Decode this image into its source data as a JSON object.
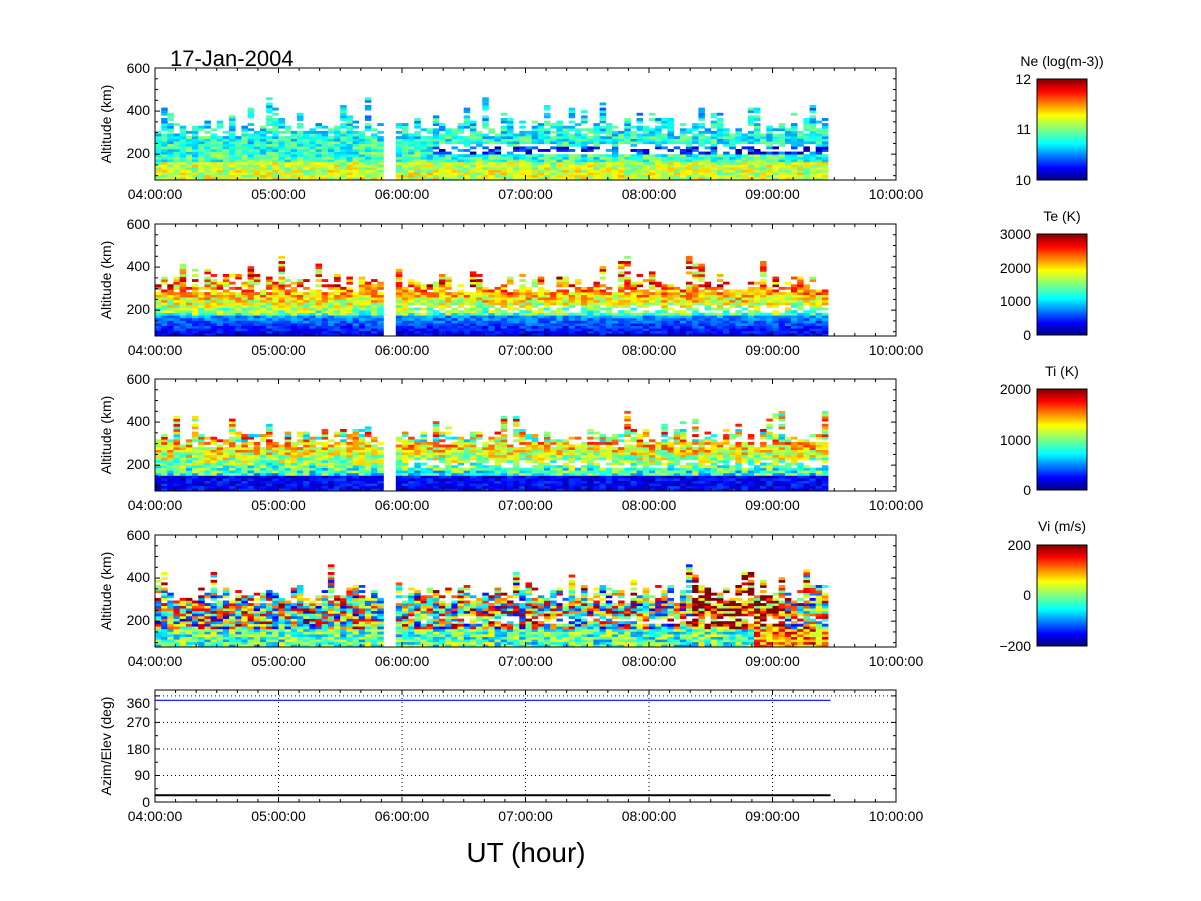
{
  "date_title": "17-Jan-2004",
  "x_axis": {
    "label": "UT (hour)",
    "tick_labels": [
      "04:00:00",
      "05:00:00",
      "06:00:00",
      "07:00:00",
      "08:00:00",
      "09:00:00",
      "10:00:00"
    ]
  },
  "chart_data": [
    {
      "type": "heatmap",
      "name": "Ne",
      "ylabel": "Altitude (km)",
      "xlim": [
        "04:00:00",
        "10:00:00"
      ],
      "ylim": [
        80,
        600
      ],
      "y_ticks": [
        "200",
        "400",
        "600"
      ],
      "data_range_hours": [
        4.0,
        9.45
      ],
      "gap_hours": [
        5.83,
        5.92
      ],
      "colorbar": {
        "title": "Ne (log(m-3))",
        "range": [
          10,
          12
        ],
        "ticks": [
          "10",
          "11",
          "12"
        ]
      }
    },
    {
      "type": "heatmap",
      "name": "Te",
      "ylabel": "Altitude (km)",
      "xlim": [
        "04:00:00",
        "10:00:00"
      ],
      "ylim": [
        80,
        600
      ],
      "y_ticks": [
        "200",
        "400",
        "600"
      ],
      "data_range_hours": [
        4.0,
        9.45
      ],
      "gap_hours": [
        5.83,
        5.92
      ],
      "colorbar": {
        "title": "Te (K)",
        "range": [
          0,
          3000
        ],
        "ticks": [
          "0",
          "1000",
          "2000",
          "3000"
        ]
      }
    },
    {
      "type": "heatmap",
      "name": "Ti",
      "ylabel": "Altitude (km)",
      "xlim": [
        "04:00:00",
        "10:00:00"
      ],
      "ylim": [
        80,
        600
      ],
      "y_ticks": [
        "200",
        "400",
        "600"
      ],
      "data_range_hours": [
        4.0,
        9.45
      ],
      "gap_hours": [
        5.83,
        5.92
      ],
      "colorbar": {
        "title": "Ti (K)",
        "range": [
          0,
          2000
        ],
        "ticks": [
          "0",
          "1000",
          "2000"
        ]
      }
    },
    {
      "type": "heatmap",
      "name": "Vi",
      "ylabel": "Altitude (km)",
      "xlim": [
        "04:00:00",
        "10:00:00"
      ],
      "ylim": [
        80,
        600
      ],
      "y_ticks": [
        "200",
        "400",
        "600"
      ],
      "data_range_hours": [
        4.0,
        9.45
      ],
      "gap_hours": [
        5.83,
        5.92
      ],
      "colorbar": {
        "title": "Vi (m/s)",
        "range": [
          -200,
          200
        ],
        "ticks": [
          "−200",
          "0",
          "200"
        ]
      }
    },
    {
      "type": "line",
      "name": "Azim/Elev",
      "ylabel": "Azim/Elev (deg)",
      "xlim": [
        "04:00:00",
        "10:00:00"
      ],
      "ylim": [
        0,
        380
      ],
      "y_ticks": [
        "0",
        "90",
        "180",
        "270",
        "360"
      ],
      "grid": true,
      "series": [
        {
          "x": [
            4.0,
            9.47
          ],
          "values": [
            345,
            345
          ],
          "color": "#0000ff"
        },
        {
          "x": [
            4.0,
            9.47
          ],
          "values": [
            23,
            23
          ],
          "color": "#000000"
        }
      ]
    }
  ]
}
